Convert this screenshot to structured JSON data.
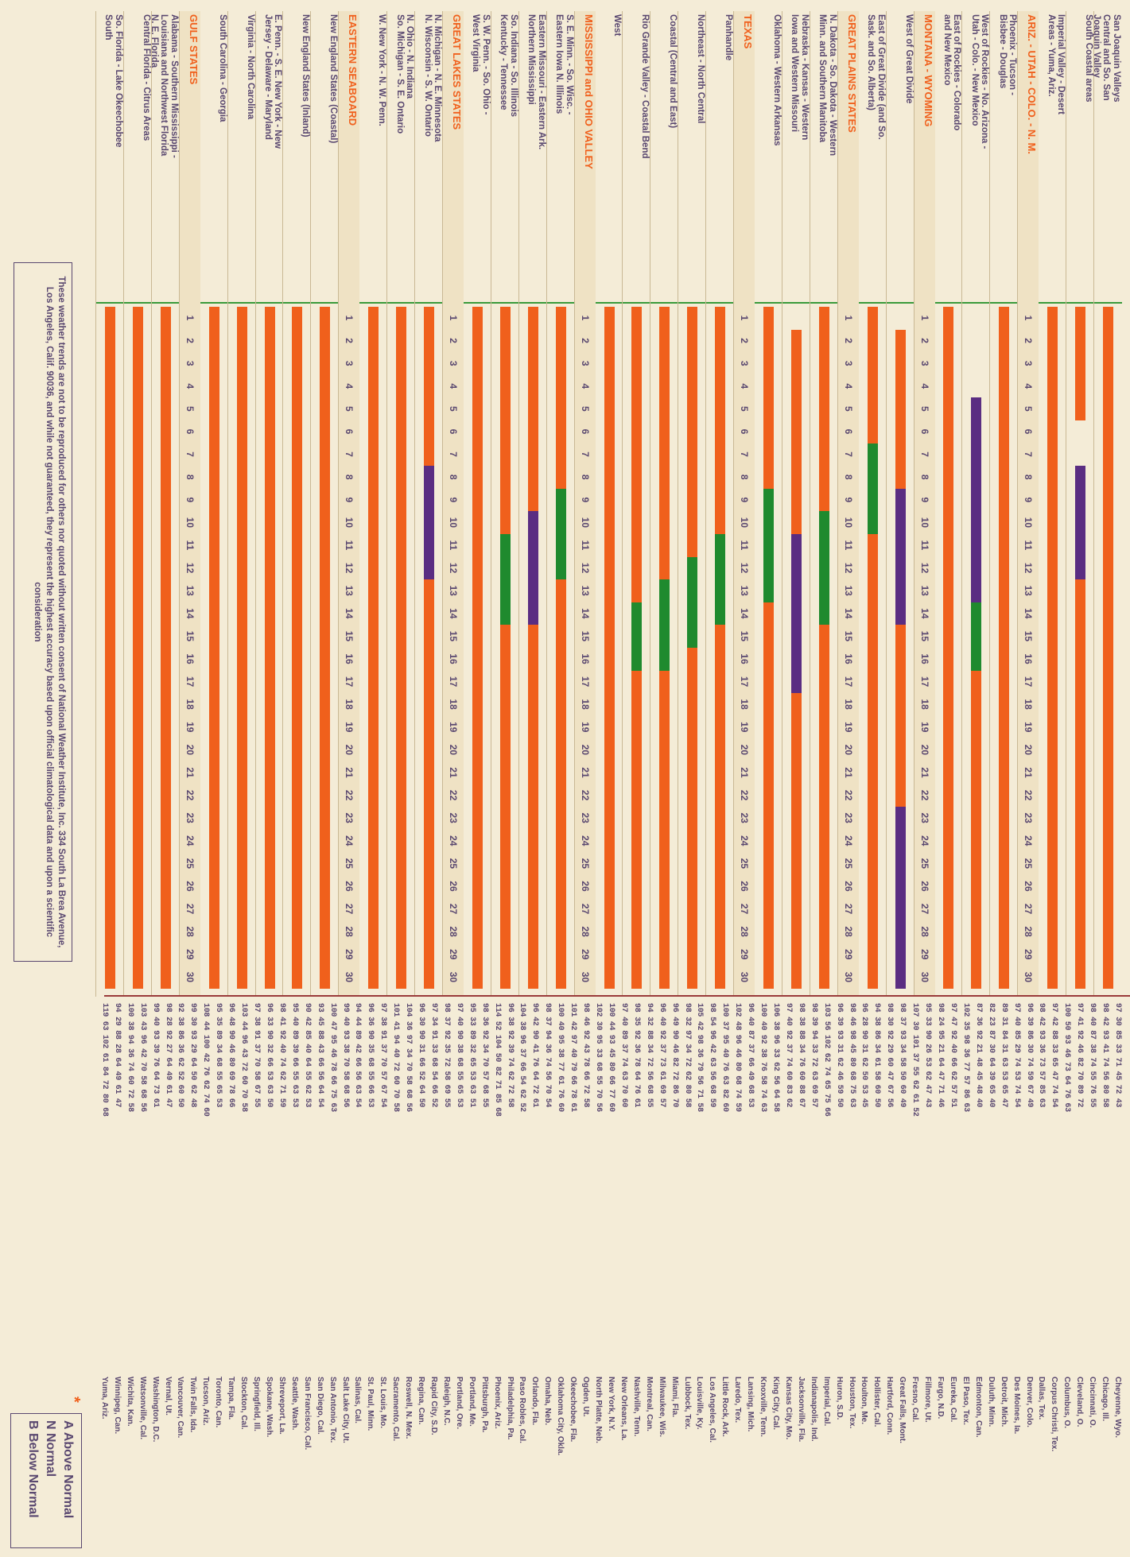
{
  "day_numbers": [
    "1",
    "2",
    "3",
    "4",
    "5",
    "6",
    "7",
    "8",
    "9",
    "10",
    "11",
    "12",
    "13",
    "14",
    "15",
    "16",
    "17",
    "18",
    "19",
    "20",
    "21",
    "22",
    "23",
    "24",
    "25",
    "26",
    "27",
    "28",
    "29",
    "30"
  ],
  "colors": {
    "hot": "#f0601c",
    "cool": "#5a2d82",
    "wet": "#1f8a2e",
    "header": "#f0601c",
    "ink": "#5a4870"
  },
  "rows": [
    {
      "label": "San Joaquin Valleys\nCentral and So. San\nJoaquin Valley",
      "bars": [
        {
          "c": "hot",
          "s": 1,
          "e": 30
        }
      ]
    },
    {
      "label": "South Coastal areas",
      "bars": [
        {
          "c": "hot",
          "s": 1,
          "e": 5
        },
        {
          "c": "cool",
          "s": 8,
          "e": 12
        },
        {
          "c": "hot",
          "s": 13,
          "e": 30
        }
      ]
    },
    {
      "label": "Imperial Valley - Desert\nAreas - Yuma, Ariz.",
      "bars": [
        {
          "c": "hot",
          "s": 1,
          "e": 30
        }
      ]
    },
    {
      "label": "ARIZ. - UTAH - COLO. - N. M.",
      "hdr": true
    },
    {
      "label": "Phoenix - Tucson -\nBisbee - Douglas",
      "bars": [
        {
          "c": "hot",
          "s": 1,
          "e": 30
        }
      ]
    },
    {
      "label": "West of Rockies - No. Arizona -\nUtah - Colo. - New Mexico",
      "bars": [
        {
          "c": "cool",
          "s": 5,
          "e": 13
        },
        {
          "c": "wet",
          "s": 14,
          "e": 16
        },
        {
          "c": "hot",
          "s": 17,
          "e": 30
        }
      ]
    },
    {
      "label": "East of Rockies - Colorado\nand New Mexico",
      "bars": [
        {
          "c": "hot",
          "s": 1,
          "e": 30
        }
      ]
    },
    {
      "label": "MONTANA - WYOMING",
      "hdr": true
    },
    {
      "label": "West of Great Divide",
      "bars": [
        {
          "c": "hot",
          "s": 2,
          "e": 8
        },
        {
          "c": "cool",
          "s": 9,
          "e": 14
        },
        {
          "c": "hot",
          "s": 15,
          "e": 22
        },
        {
          "c": "cool",
          "s": 23,
          "e": 30
        }
      ]
    },
    {
      "label": "East of Great Divide (and So.\nSask. and So. Alberta)",
      "bars": [
        {
          "c": "hot",
          "s": 1,
          "e": 6
        },
        {
          "c": "wet",
          "s": 7,
          "e": 10
        },
        {
          "c": "hot",
          "s": 11,
          "e": 30
        }
      ]
    },
    {
      "label": "GREAT PLAINS STATES",
      "hdr": true
    },
    {
      "label": "N. Dakota - So. Dakota - Western\nMinn. and Southern Manitoba",
      "bars": [
        {
          "c": "hot",
          "s": 1,
          "e": 9
        },
        {
          "c": "wet",
          "s": 10,
          "e": 14
        },
        {
          "c": "hot",
          "s": 15,
          "e": 30
        }
      ]
    },
    {
      "label": "Nebraska - Kansas - Western\nIowa and Western Missouri",
      "bars": [
        {
          "c": "hot",
          "s": 2,
          "e": 10
        },
        {
          "c": "cool",
          "s": 11,
          "e": 17
        },
        {
          "c": "hot",
          "s": 18,
          "e": 30
        }
      ]
    },
    {
      "label": "Oklahoma - Western Arkansas",
      "bars": [
        {
          "c": "hot",
          "s": 1,
          "e": 8
        },
        {
          "c": "wet",
          "s": 9,
          "e": 13
        },
        {
          "c": "hot",
          "s": 14,
          "e": 30
        }
      ]
    },
    {
      "label": "TEXAS",
      "hdr": true
    },
    {
      "label": "Panhandle",
      "bars": [
        {
          "c": "hot",
          "s": 1,
          "e": 10
        },
        {
          "c": "wet",
          "s": 11,
          "e": 14
        },
        {
          "c": "hot",
          "s": 15,
          "e": 30
        }
      ]
    },
    {
      "label": "Northeast - North Central",
      "bars": [
        {
          "c": "hot",
          "s": 1,
          "e": 11
        },
        {
          "c": "wet",
          "s": 12,
          "e": 15
        },
        {
          "c": "hot",
          "s": 16,
          "e": 30
        }
      ]
    },
    {
      "label": "Coastal (Central and East)",
      "bars": [
        {
          "c": "hot",
          "s": 1,
          "e": 12
        },
        {
          "c": "wet",
          "s": 13,
          "e": 16
        },
        {
          "c": "hot",
          "s": 17,
          "e": 30
        }
      ]
    },
    {
      "label": "Rio Grande Valley - Coastal Bend",
      "bars": [
        {
          "c": "hot",
          "s": 1,
          "e": 13
        },
        {
          "c": "wet",
          "s": 14,
          "e": 16
        },
        {
          "c": "hot",
          "s": 17,
          "e": 30
        }
      ]
    },
    {
      "label": "West",
      "bars": [
        {
          "c": "hot",
          "s": 1,
          "e": 30
        }
      ]
    },
    {
      "label": "MISSISSIPPI and OHIO VALLEY",
      "hdr": true
    },
    {
      "label": "S. E. Minn. - So. Wisc. -\nEastern Iowa N. Illinois",
      "bars": [
        {
          "c": "hot",
          "s": 1,
          "e": 8
        },
        {
          "c": "wet",
          "s": 9,
          "e": 12
        },
        {
          "c": "hot",
          "s": 13,
          "e": 30
        }
      ]
    },
    {
      "label": "Eastern Missouri - Eastern Ark.\nNorthern Mississippi",
      "bars": [
        {
          "c": "hot",
          "s": 1,
          "e": 9
        },
        {
          "c": "cool",
          "s": 10,
          "e": 14
        },
        {
          "c": "hot",
          "s": 15,
          "e": 30
        }
      ]
    },
    {
      "label": "So. Indiana - So. Illinois\nKentucky - Tennessee",
      "bars": [
        {
          "c": "hot",
          "s": 1,
          "e": 10
        },
        {
          "c": "wet",
          "s": 11,
          "e": 14
        },
        {
          "c": "hot",
          "s": 15,
          "e": 30
        }
      ]
    },
    {
      "label": "S. W. Penn. - So. Ohio -\nWest Virginia",
      "bars": [
        {
          "c": "hot",
          "s": 1,
          "e": 30
        }
      ]
    },
    {
      "label": "GREAT LAKES STATES",
      "hdr": true
    },
    {
      "label": "N. Michigan - N. E. Minnesota\nN. Wisconsin - S. W. Ontario",
      "bars": [
        {
          "c": "hot",
          "s": 1,
          "e": 7
        },
        {
          "c": "cool",
          "s": 8,
          "e": 12
        },
        {
          "c": "hot",
          "s": 13,
          "e": 30
        }
      ]
    },
    {
      "label": "N. Ohio - N. Indiana\nSo. Michigan - S. E. Ontario",
      "bars": [
        {
          "c": "hot",
          "s": 1,
          "e": 30
        }
      ]
    },
    {
      "label": "W. New York - N. W. Penn.",
      "bars": [
        {
          "c": "hot",
          "s": 1,
          "e": 30
        }
      ]
    },
    {
      "label": "EASTERN SEABOARD",
      "hdr": true
    },
    {
      "label": "New England States (Coastal)",
      "bars": [
        {
          "c": "hot",
          "s": 1,
          "e": 30
        }
      ]
    },
    {
      "label": "New England States (Inland)",
      "bars": [
        {
          "c": "hot",
          "s": 1,
          "e": 30
        }
      ]
    },
    {
      "label": "E. Penn. - S. E. New York - New\nJersey - Delaware - Maryland",
      "bars": [
        {
          "c": "hot",
          "s": 1,
          "e": 30
        }
      ]
    },
    {
      "label": "Virginia - North Carolina",
      "bars": [
        {
          "c": "hot",
          "s": 1,
          "e": 30
        }
      ]
    },
    {
      "label": "South Carolina - Georgia",
      "bars": [
        {
          "c": "hot",
          "s": 1,
          "e": 30
        }
      ]
    },
    {
      "label": "GULF STATES",
      "hdr": true
    },
    {
      "label": "Alabama - Southern Mississippi -\nLouisiana and Northwest Florida\nN. E. Florida",
      "bars": [
        {
          "c": "hot",
          "s": 1,
          "e": 30
        }
      ]
    },
    {
      "label": "Central Florida - Citrus Areas",
      "bars": [
        {
          "c": "hot",
          "s": 1,
          "e": 30
        }
      ]
    },
    {
      "label": "So. Florida - Lake Okeechobee\nSouth",
      "bars": [
        {
          "c": "hot",
          "s": 1,
          "e": 30
        }
      ]
    }
  ],
  "footnote": "These weather trends are not to be reproduced for others nor quoted without written consent of National Weather Institute, Inc. 334 South La Brea Avenue, Los Angeles, Calif. 90036, and while not guaranteed, they represent the highest accuracy based upon official climatological data and upon a scientific consideration",
  "stations": [
    {
      "temps": "97 30 85 33 71 45 72 43",
      "name": "Cheyenne, Wyo."
    },
    {
      "temps": "98 42 93 41 74 56 80 58",
      "name": "Chicago, Ill."
    },
    {
      "temps": "98 40 87 38 74 55 76 55",
      "name": "Cincinnati, O."
    },
    {
      "temps": "97 41 92 46 82 70 89 72",
      "name": "Cleveland, O."
    },
    {
      "temps": "100 50 93 46 73 64 76 63",
      "name": "Columbus, O."
    },
    {
      "temps": "97 42 88 33 65 47 74 54",
      "name": "Corpus Christi, Tex."
    },
    {
      "temps": "98 42 93 36 73 57 85 63",
      "name": "Dallas, Tex."
    },
    {
      "temps": "96 39 86 30 74 59 67 49",
      "name": "Denver, Colo."
    },
    {
      "temps": "97 40 85 29 74 53 74 54",
      "name": "Des Moines, Ia."
    },
    {
      "temps": "89 31 84 31 63 53 65 47",
      "name": "Detroit, Mich."
    },
    {
      "temps": "82 23 87 30 64 39 65 40",
      "name": "Duluth, Minn."
    },
    {
      "temps": "87 36 92 21 48 45 48 40",
      "name": "Edmonton, Can."
    },
    {
      "temps": "102 35 98 36 77 57 86 63",
      "name": "El Paso, Tex."
    },
    {
      "temps": "97 47 92 40 66 62 57 51",
      "name": "Eureka, Cal."
    },
    {
      "temps": "98 24 95 21 64 47 71 46",
      "name": "Fargo, N.D."
    },
    {
      "temps": "95 33 90 26 53 62 47 43",
      "name": "Fillmore, Ut."
    },
    {
      "temps": "107 30 101 37 55 62 61 52",
      "name": "Fresno, Cal."
    },
    {
      "temps": "98 37 93 34 58 50 60 49",
      "name": "Great Falls, Mont."
    },
    {
      "temps": "98 30 92 29 60 47 67 56",
      "name": "Hartford, Conn."
    },
    {
      "temps": "94 38 86 34 61 58 60 50",
      "name": "Hollister, Cal."
    },
    {
      "temps": "96 28 90 31 62 50 53 45",
      "name": "Houlton, Me."
    },
    {
      "temps": "98 46 98 45 80 68 75 63",
      "name": "Houston, Tex."
    },
    {
      "temps": "96 39 93 31 62 46 59 50",
      "name": "Huron, S.D."
    },
    {
      "temps": "103 56 102 62 74 65 75 66",
      "name": "Imperial, Cal."
    },
    {
      "temps": "98 39 94 33 72 63 69 57",
      "name": "Indianapolis, Ind."
    },
    {
      "temps": "98 38 88 34 76 60 88 67",
      "name": "Jacksonville, Fla."
    },
    {
      "temps": "97 40 92 37 74 60 83 62",
      "name": "Kansas City, Mo."
    },
    {
      "temps": "106 38 96 33 62 56 64 58",
      "name": "King City, Cal."
    },
    {
      "temps": "100 40 92 38 76 58 74 63",
      "name": "Knoxville, Tenn."
    },
    {
      "temps": "96 40 87 37 66 49 68 53",
      "name": "Lansing, Mich."
    },
    {
      "temps": "102 48 96 46 80 68 74 59",
      "name": "Laredo, Tex."
    },
    {
      "temps": "100 37 95 40 76 63 82 60",
      "name": "Little Rock, Ark."
    },
    {
      "temps": "98 54 96 42 63 56 68 59",
      "name": "Los Angeles, Cal."
    },
    {
      "temps": "105 42 98 36 79 56 71 58",
      "name": "Louisville, Ky."
    },
    {
      "temps": "98 32 97 34 72 62 80 58",
      "name": "Lubbock, Tex."
    },
    {
      "temps": "96 49 90 46 82 72 86 70",
      "name": "Miami, Fla."
    },
    {
      "temps": "96 40 92 37 73 61 69 57",
      "name": "Milwaukee, Wis."
    },
    {
      "temps": "94 32 88 34 72 56 68 55",
      "name": "Montreal, Can."
    },
    {
      "temps": "98 35 92 36 78 64 76 61",
      "name": "Nashville, Tenn."
    },
    {
      "temps": "97 40 89 37 74 63 70 60",
      "name": "New Orleans, La."
    },
    {
      "temps": "100 44 93 45 80 66 77 60",
      "name": "New York, N.Y."
    },
    {
      "temps": "102 30 95 33 68 55 70 56",
      "name": "North Platte, Neb."
    },
    {
      "temps": "98 46 92 43 78 66 72 58",
      "name": "Ogden, Ut."
    },
    {
      "temps": "101 42 97 40 79 66 78 61",
      "name": "Okeechobee, Fla."
    },
    {
      "temps": "100 40 95 38 77 61 76 60",
      "name": "Oklahoma City, Okla."
    },
    {
      "temps": "98 37 94 36 74 56 70 54",
      "name": "Omaha, Neb."
    },
    {
      "temps": "96 42 90 41 76 64 72 61",
      "name": "Orlando, Fla."
    },
    {
      "temps": "104 38 96 37 66 54 62 52",
      "name": "Paso Robles, Cal."
    },
    {
      "temps": "96 38 92 39 74 62 72 58",
      "name": "Philadelphia, Pa."
    },
    {
      "temps": "114 52 104 50 82 71 85 68",
      "name": "Phoenix, Ariz."
    },
    {
      "temps": "98 36 92 34 70 57 68 55",
      "name": "Pittsburgh, Pa."
    },
    {
      "temps": "95 33 89 32 65 53 63 51",
      "name": "Portland, Me."
    },
    {
      "temps": "97 40 90 38 68 55 65 53",
      "name": "Portland, Ore."
    },
    {
      "temps": "98 37 92 35 72 58 69 55",
      "name": "Raleigh, N.C."
    },
    {
      "temps": "97 34 91 33 68 54 66 52",
      "name": "Rapid City, S.D."
    },
    {
      "temps": "96 30 90 31 66 52 64 50",
      "name": "Regina, Can."
    },
    {
      "temps": "104 36 97 34 70 58 68 56",
      "name": "Roswell, N. Mex."
    },
    {
      "temps": "101 41 94 40 72 60 70 58",
      "name": "Sacramento, Cal."
    },
    {
      "temps": "97 38 91 37 70 57 67 54",
      "name": "St. Louis, Mo."
    },
    {
      "temps": "96 36 90 35 68 55 66 53",
      "name": "St. Paul, Minn."
    },
    {
      "temps": "94 44 89 42 66 56 63 54",
      "name": "Salinas, Cal."
    },
    {
      "temps": "99 40 93 38 70 58 68 56",
      "name": "Salt Lake City, Ut."
    },
    {
      "temps": "100 47 95 46 78 66 75 63",
      "name": "San Antonio, Tex."
    },
    {
      "temps": "93 45 88 43 66 56 64 54",
      "name": "San Diego, Cal."
    },
    {
      "temps": "90 42 85 40 64 55 62 53",
      "name": "San Francisco, Cal."
    },
    {
      "temps": "95 40 89 39 66 55 63 53",
      "name": "Seattle, Wash."
    },
    {
      "temps": "98 41 92 40 74 62 71 59",
      "name": "Shreveport, La."
    },
    {
      "temps": "96 33 90 32 66 53 63 50",
      "name": "Spokane, Wash."
    },
    {
      "temps": "97 38 91 37 70 58 67 55",
      "name": "Springfield, Ill."
    },
    {
      "temps": "103 44 96 43 72 60 70 58",
      "name": "Stockton, Cal."
    },
    {
      "temps": "96 48 90 46 80 69 78 66",
      "name": "Tampa, Fla."
    },
    {
      "temps": "95 35 89 34 68 55 65 53",
      "name": "Toronto, Can."
    },
    {
      "temps": "108 44 100 42 76 62 74 60",
      "name": "Tucson, Ariz."
    },
    {
      "temps": "99 30 93 29 64 50 62 48",
      "name": "Twin Falls, Ida."
    },
    {
      "temps": "92 38 86 36 62 52 60 50",
      "name": "Vancouver, Can."
    },
    {
      "temps": "98 28 92 27 64 49 61 47",
      "name": "Vernal, Ut."
    },
    {
      "temps": "99 40 93 39 76 64 73 61",
      "name": "Washington, D.C."
    },
    {
      "temps": "103 43 96 42 70 58 68 56",
      "name": "Watsonville, Cal."
    },
    {
      "temps": "100 38 94 36 74 60 72 58",
      "name": "Wichita, Kan."
    },
    {
      "temps": "94 29 88 28 64 49 61 47",
      "name": "Winnipeg, Can."
    },
    {
      "temps": "119 63 102 61 84 72 80 68",
      "name": "Yuma, Ariz."
    }
  ],
  "legend": {
    "star": "*",
    "above": "A  Above Normal",
    "normal": "N  Normal",
    "below": "B  Below Normal"
  }
}
